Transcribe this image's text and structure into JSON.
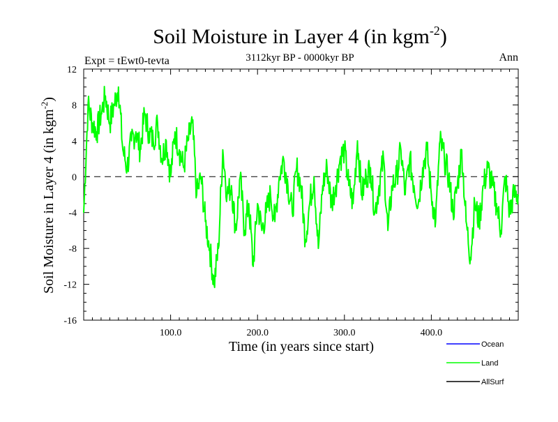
{
  "colors": {
    "background": "#ffffff",
    "axes": "#000000",
    "land": "#00ff00",
    "ocean": "#0000ff",
    "allsurf": "#000000"
  },
  "header": {
    "title_main": "Soil Moisture in Layer 4 (in kgm",
    "title_sup": "-2",
    "title_close": ")",
    "expt_label": "Expt = tEwt0-tevta",
    "period": "3112kyr BP - 0000kyr BP",
    "season": "Ann"
  },
  "legend": {
    "items": [
      {
        "label": "Ocean",
        "color": "#0000ff"
      },
      {
        "label": "Land",
        "color": "#00ff00"
      },
      {
        "label": "AllSurf",
        "color": "#000000"
      }
    ]
  },
  "chart_data": {
    "type": "line",
    "title": "Soil Moisture in Layer 4 (in kgm-2)",
    "xlabel": "Time (in years since start)",
    "ylabel_main": "Soil Moisture in Layer 4 (in kgm",
    "ylabel_sup": "-2",
    "ylabel_close": ")",
    "xlim": [
      0,
      500
    ],
    "ylim": [
      -16,
      12
    ],
    "xticks": [
      100,
      200,
      300,
      400
    ],
    "xtick_labels": [
      "100.0",
      "200.0",
      "300.0",
      "400.0"
    ],
    "yticks": [
      -16,
      -12,
      -8,
      -4,
      0,
      4,
      8,
      12
    ],
    "ytick_labels": [
      "-16",
      "-12",
      "-8",
      "-4",
      "0",
      "4",
      "8",
      "12"
    ],
    "zero_line": true,
    "series": [
      {
        "name": "Land",
        "color": "#00ff00",
        "x": [
          0,
          5,
          10,
          15,
          20,
          25,
          30,
          35,
          40,
          45,
          50,
          55,
          60,
          65,
          70,
          75,
          80,
          85,
          90,
          95,
          100,
          105,
          110,
          115,
          120,
          125,
          130,
          135,
          140,
          145,
          150,
          155,
          160,
          165,
          170,
          175,
          180,
          185,
          190,
          195,
          200,
          205,
          210,
          215,
          220,
          225,
          230,
          235,
          240,
          245,
          250,
          255,
          260,
          265,
          270,
          275,
          280,
          285,
          290,
          295,
          300,
          305,
          310,
          315,
          320,
          325,
          330,
          335,
          340,
          345,
          350,
          355,
          360,
          365,
          370,
          375,
          380,
          385,
          390,
          395,
          400,
          405,
          410,
          415,
          420,
          425,
          430,
          435,
          440,
          445,
          450,
          455,
          460,
          465,
          470,
          475,
          480,
          485,
          490,
          495,
          500
        ],
        "values": [
          -4,
          8,
          6,
          5,
          7,
          9,
          6,
          8,
          10,
          3,
          1,
          4,
          5,
          3,
          7,
          5,
          4,
          6,
          2,
          4,
          0,
          5,
          3,
          1,
          4,
          6,
          -2,
          0,
          -5,
          -8,
          -12,
          -8,
          3,
          -2,
          -1,
          -6,
          0,
          -6,
          -3,
          -10,
          -3,
          -6,
          -4,
          -2,
          -5,
          0,
          2,
          -1,
          -4,
          1,
          -1,
          -7,
          -3,
          0,
          -8,
          -1,
          1,
          -3,
          -1,
          2,
          3,
          -1,
          -3,
          4,
          -2,
          0,
          1,
          -4,
          -1,
          2,
          -6,
          -1,
          0,
          3,
          -2,
          2,
          -1,
          -3,
          1,
          3,
          -2,
          -5,
          4,
          2,
          0,
          -4,
          -1,
          3,
          -5,
          -9,
          -3,
          -5,
          -1,
          1,
          -1,
          -3,
          -6,
          0,
          -4,
          -2,
          -2
        ]
      }
    ]
  }
}
